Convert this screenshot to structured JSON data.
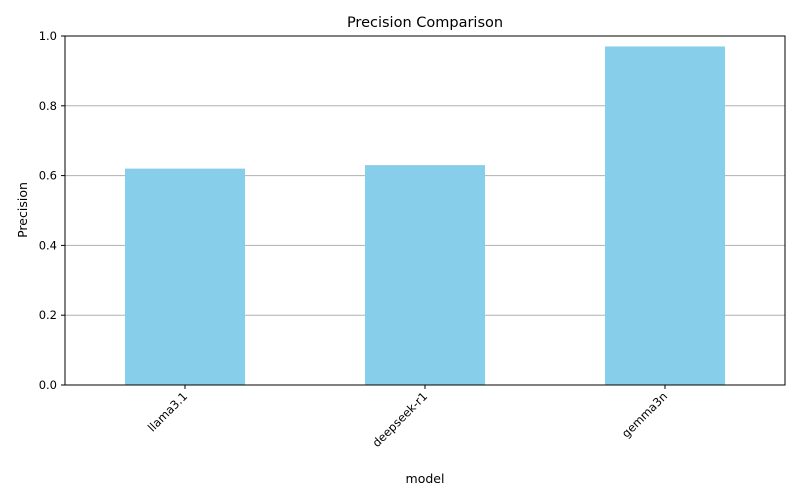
{
  "chart_data": {
    "type": "bar",
    "title": "Precision Comparison",
    "xlabel": "model",
    "ylabel": "Precision",
    "categories": [
      "llama3.1",
      "deepseek-r1",
      "gemma3n"
    ],
    "values": [
      0.62,
      0.63,
      0.97
    ],
    "ylim": [
      0,
      1.0
    ],
    "yticks": [
      "0.0",
      "0.2",
      "0.4",
      "0.6",
      "0.8",
      "1.0"
    ],
    "grid": "y-axis",
    "bar_color": "#87ceeb",
    "grid_color": "#b0b0b0",
    "x_tick_rotation": "45 degrees"
  }
}
